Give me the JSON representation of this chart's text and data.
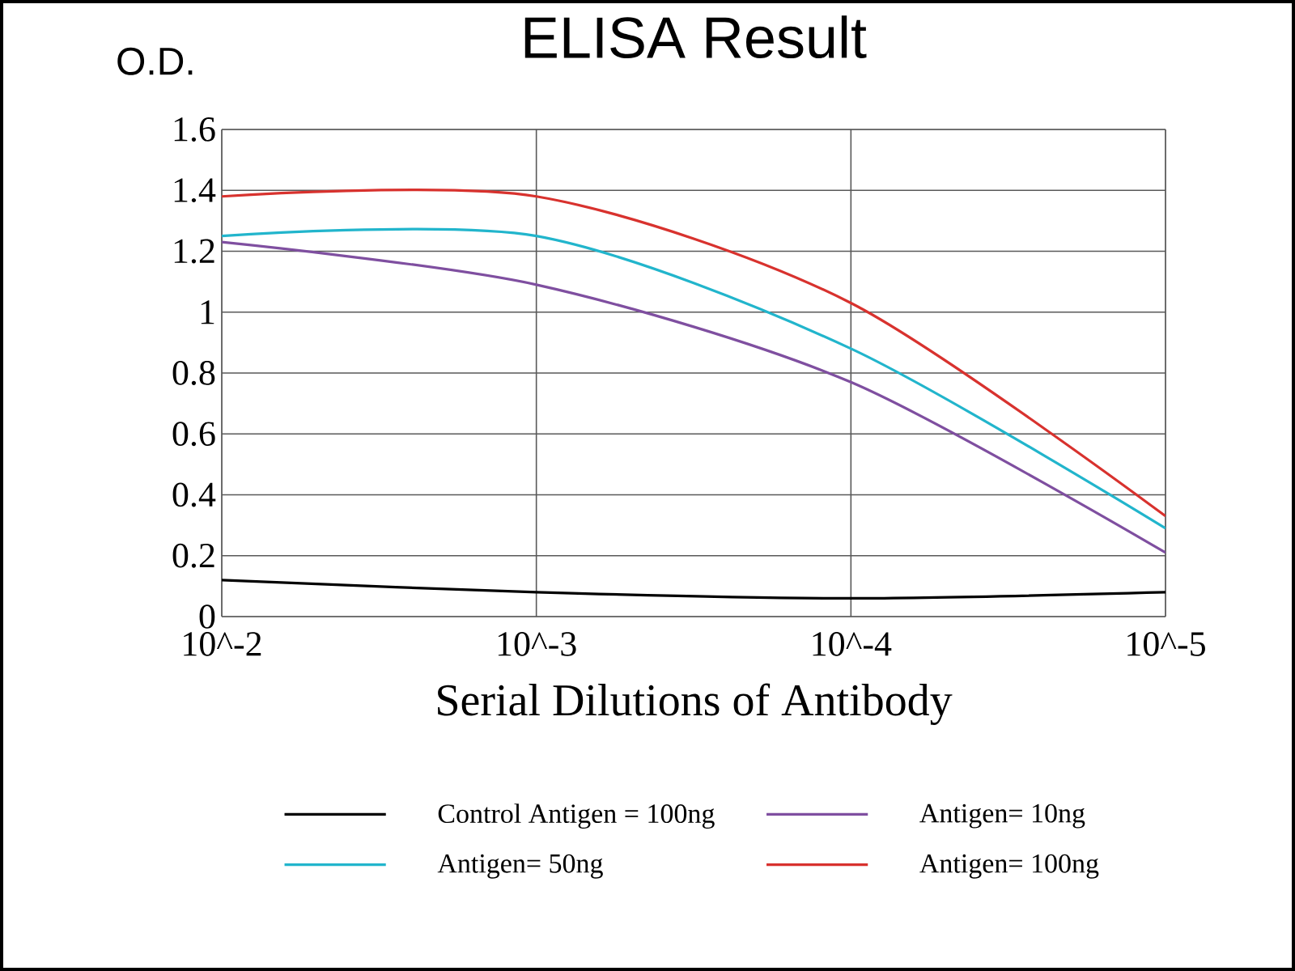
{
  "chart_data": {
    "type": "line",
    "title": "ELISA Result",
    "xlabel": "Serial Dilutions  of Antibody",
    "ylabel": "O.D.",
    "categories": [
      "10^-2",
      "10^-3",
      "10^-4",
      "10^-5"
    ],
    "series": [
      {
        "name": "Control Antigen = 100ng",
        "color": "#000000",
        "values": [
          0.12,
          0.08,
          0.06,
          0.08
        ]
      },
      {
        "name": "Antigen= 10ng",
        "color": "#7f4fa0",
        "values": [
          1.23,
          1.09,
          0.77,
          0.21
        ]
      },
      {
        "name": "Antigen= 50ng",
        "color": "#22b5cc",
        "values": [
          1.25,
          1.25,
          0.88,
          0.29
        ]
      },
      {
        "name": "Antigen= 100ng",
        "color": "#d8322e",
        "values": [
          1.38,
          1.38,
          1.03,
          0.33
        ]
      }
    ],
    "ylim": [
      0,
      1.6
    ],
    "yticks": [
      0,
      0.2,
      0.4,
      0.6,
      0.8,
      1,
      1.2,
      1.4,
      1.6
    ],
    "grid": true,
    "legend": "bottom"
  }
}
